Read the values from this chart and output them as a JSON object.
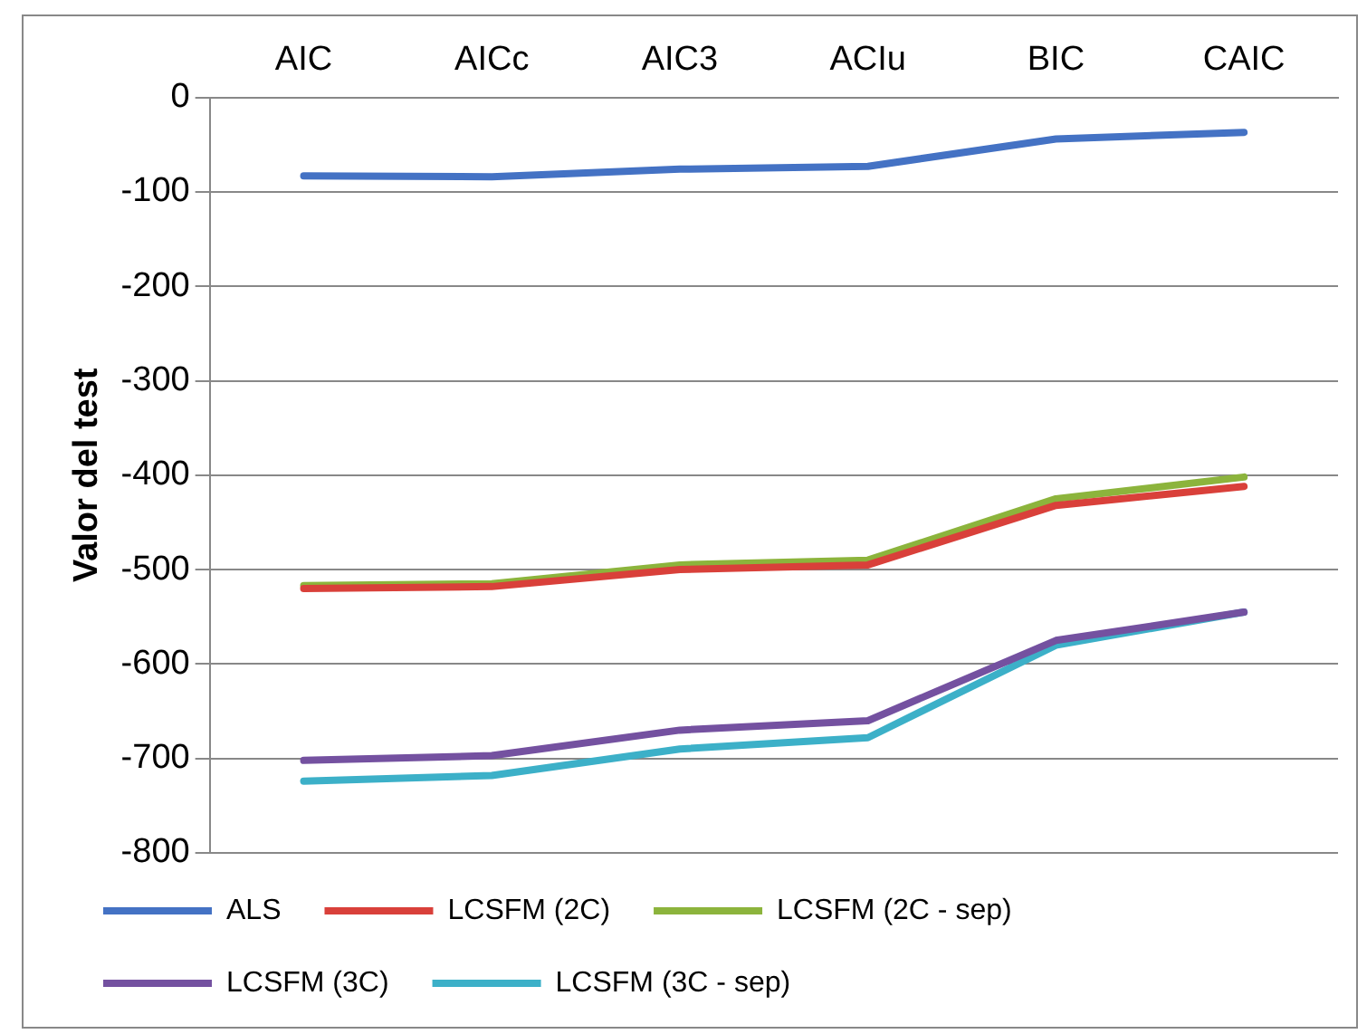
{
  "chart_data": {
    "type": "line",
    "ylabel": "Valor del test",
    "categories": [
      "AIC",
      "AICc",
      "AIC3",
      "ACIu",
      "BIC",
      "CAIC"
    ],
    "series": [
      {
        "name": "ALS",
        "color": "#4472c4",
        "values": [
          -83,
          -84,
          -76,
          -73,
          -44,
          -37
        ]
      },
      {
        "name": "LCSFM (2C)",
        "color": "#d9403a",
        "values": [
          -520,
          -518,
          -500,
          -495,
          -432,
          -412
        ]
      },
      {
        "name": "LCSFM (2C - sep)",
        "color": "#8cb43c",
        "values": [
          -517,
          -515,
          -495,
          -490,
          -425,
          -402
        ]
      },
      {
        "name": "LCSFM (3C)",
        "color": "#7451a0",
        "values": [
          -702,
          -697,
          -670,
          -660,
          -575,
          -545
        ]
      },
      {
        "name": "LCSFM (3C - sep)",
        "color": "#3cb0c8",
        "values": [
          -724,
          -718,
          -690,
          -678,
          -580,
          -545
        ]
      }
    ],
    "ylim": [
      -800,
      0
    ],
    "yticks": [
      -800,
      -700,
      -600,
      -500,
      -400,
      -300,
      -200,
      -100,
      0
    ],
    "grid": "y",
    "legend": "bottom",
    "marker": "none",
    "line_style": "solid"
  }
}
